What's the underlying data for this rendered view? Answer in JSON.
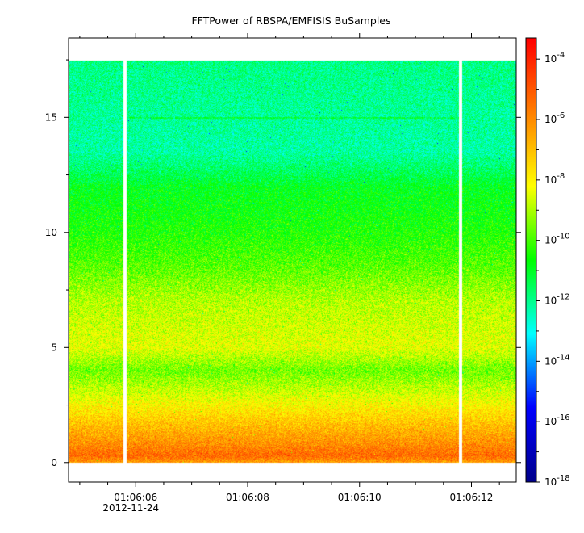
{
  "chart_data": {
    "type": "heatmap",
    "title": "FFTPower of RBSPA/EMFISIS  BuSamples",
    "xlabel": "",
    "ylabel": "",
    "x_ticks": [
      {
        "label": "01:06:06",
        "sublabel": "2012-11-24",
        "t": 6
      },
      {
        "label": "01:06:08",
        "sublabel": "",
        "t": 8
      },
      {
        "label": "01:06:10",
        "sublabel": "",
        "t": 10
      },
      {
        "label": "01:06:12",
        "sublabel": "",
        "t": 12
      }
    ],
    "xlim_seconds": [
      4.8,
      12.8
    ],
    "x_minor_step_seconds": 0.5,
    "y_ticks": [
      0,
      5,
      10,
      15
    ],
    "ylim": [
      -0.85,
      18.45
    ],
    "colorbar": {
      "scale": "log",
      "range_exponents": [
        -18,
        -3.3
      ],
      "tick_exponents": [
        -18,
        -16,
        -14,
        -12,
        -10,
        -8,
        -6,
        -4
      ],
      "tick_labels": [
        "10",
        "10",
        "10",
        "10",
        "10",
        "10",
        "10",
        "10"
      ],
      "tick_superscripts": [
        "-18",
        "-16",
        "-14",
        "-12",
        "-10",
        "-8",
        "-6",
        "-4"
      ],
      "colors": [
        "#00008b",
        "#0000ff",
        "#00ffff",
        "#00ff00",
        "#ffff00",
        "#ff8000",
        "#ff0000"
      ]
    },
    "spectrogram": {
      "frequency_range": [
        0,
        17.5
      ],
      "time_range_seconds": [
        4.8,
        12.8
      ],
      "data_gaps_seconds": [
        5.8,
        11.8
      ],
      "narrowband_line_y": 15.0,
      "level_profile": [
        {
          "y": 0.0,
          "exp": -6.3
        },
        {
          "y": 0.3,
          "exp": -5.3
        },
        {
          "y": 0.8,
          "exp": -6.0
        },
        {
          "y": 1.5,
          "exp": -6.8
        },
        {
          "y": 3.0,
          "exp": -8.6
        },
        {
          "y": 4.0,
          "exp": -9.6
        },
        {
          "y": 5.0,
          "exp": -8.4
        },
        {
          "y": 7.0,
          "exp": -8.9
        },
        {
          "y": 8.5,
          "exp": -9.8
        },
        {
          "y": 10.0,
          "exp": -10.4
        },
        {
          "y": 12.0,
          "exp": -10.9
        },
        {
          "y": 12.35,
          "exp": -11.3
        },
        {
          "y": 13.5,
          "exp": -12.2
        },
        {
          "y": 17.5,
          "exp": -11.9
        }
      ]
    }
  }
}
